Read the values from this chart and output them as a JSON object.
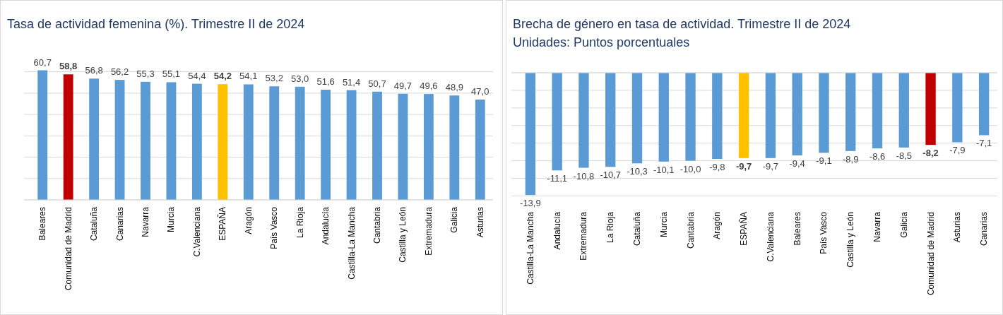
{
  "chart_data": [
    {
      "type": "bar",
      "title": "Tasa de actividad femenina (%). Trimestre II de 2024",
      "categories": [
        "Baleares",
        "Comunidad de Madrid",
        "Cataluña",
        "Canarias",
        "Navarra",
        "Murcia",
        "C.Valenciana",
        "ESPAÑA",
        "Aragón",
        "País Vasco",
        "La Rioja",
        "Andalucía",
        "Castilla-La Mancha",
        "Cantabria",
        "Castilla y León",
        "Extremadura",
        "Galicia",
        "Asturias"
      ],
      "values": [
        60.7,
        58.8,
        56.8,
        56.2,
        55.3,
        55.1,
        54.4,
        54.2,
        54.1,
        53.2,
        53.0,
        51.6,
        51.4,
        50.7,
        49.7,
        49.6,
        48.9,
        47.0
      ],
      "value_labels": [
        "60,7",
        "58,8",
        "56,8",
        "56,2",
        "55,3",
        "55,1",
        "54,4",
        "54,2",
        "54,1",
        "53,2",
        "53,0",
        "51,6",
        "51,4",
        "50,7",
        "49,7",
        "49,6",
        "48,9",
        "47,0"
      ],
      "colors": [
        "#5b9bd5",
        "#c00000",
        "#5b9bd5",
        "#5b9bd5",
        "#5b9bd5",
        "#5b9bd5",
        "#5b9bd5",
        "#ffc000",
        "#5b9bd5",
        "#5b9bd5",
        "#5b9bd5",
        "#5b9bd5",
        "#5b9bd5",
        "#5b9bd5",
        "#5b9bd5",
        "#5b9bd5",
        "#5b9bd5",
        "#5b9bd5"
      ],
      "tick_labels": "x",
      "grid": "y"
    },
    {
      "type": "bar",
      "title": "Brecha de género en tasa de actividad. Trimestre II de 2024",
      "subtitle": "Unidades: Puntos porcentuales",
      "categories": [
        "Castilla-La Mancha",
        "Andalucía",
        "Extremadura",
        "La Rioja",
        "Cataluña",
        "Murcia",
        "Cantabria",
        "Aragón",
        "ESPAÑA",
        "C.Valenciana",
        "Baleares",
        "País Vasco",
        "Castilla y León",
        "Navarra",
        "Galicia",
        "Comunidad de Madrid",
        "Asturias",
        "Canarias"
      ],
      "values": [
        -13.9,
        -11.1,
        -10.8,
        -10.7,
        -10.3,
        -10.1,
        -10.0,
        -9.8,
        -9.7,
        -9.7,
        -9.4,
        -9.1,
        -8.9,
        -8.6,
        -8.5,
        -8.2,
        -7.9,
        -7.1
      ],
      "value_labels": [
        "-13,9",
        "-11,1",
        "-10,8",
        "-10,7",
        "-10,3",
        "-10,1",
        "-10,0",
        "-9,8",
        "-9,7",
        "-9,7",
        "-9,4",
        "-9,1",
        "-8,9",
        "-8,6",
        "-8,5",
        "-8,2",
        "-7,9",
        "-7,1"
      ],
      "colors": [
        "#5b9bd5",
        "#5b9bd5",
        "#5b9bd5",
        "#5b9bd5",
        "#5b9bd5",
        "#5b9bd5",
        "#5b9bd5",
        "#5b9bd5",
        "#ffc000",
        "#5b9bd5",
        "#5b9bd5",
        "#5b9bd5",
        "#5b9bd5",
        "#5b9bd5",
        "#5b9bd5",
        "#c00000",
        "#5b9bd5",
        "#5b9bd5"
      ],
      "tick_labels": "x",
      "grid": "y"
    }
  ]
}
